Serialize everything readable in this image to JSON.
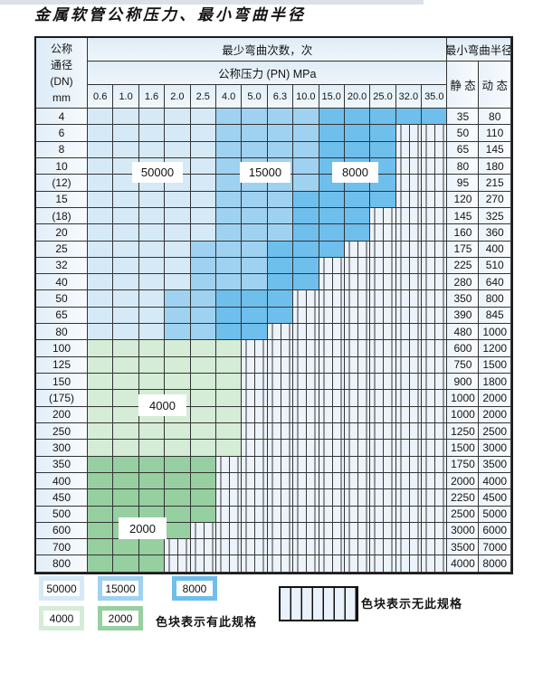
{
  "title": "金属软管公称压力、最小弯曲半径",
  "header": {
    "dn_lines": [
      "公称",
      "通径",
      "(DN)",
      "mm"
    ],
    "cycles_label": "最少弯曲次数，次",
    "pressure_label": "公称压力 (PN) MPa",
    "pressure_values": [
      "0.6",
      "1.0",
      "1.6",
      "2.0",
      "2.5",
      "4.0",
      "5.0",
      "6.3",
      "10.0",
      "15.0",
      "20.0",
      "25.0",
      "32.0",
      "35.0"
    ],
    "radius_label": "最小弯曲半径",
    "static_label": "静 态",
    "dynamic_label": "动 态"
  },
  "colors": {
    "c50000": "#d6e9f7",
    "c15000": "#9fd2f1",
    "c8000": "#6fbfec",
    "c4000": "#d5ecd7",
    "c2000": "#96cfa0",
    "hatch_bg": "#ecf3fb",
    "grid_line": "#333333"
  },
  "rows": [
    {
      "dn": "4",
      "static": "35",
      "dynamic": "80",
      "last_col": 13,
      "band": [
        5,
        9
      ]
    },
    {
      "dn": "6",
      "static": "50",
      "dynamic": "110",
      "last_col": 11,
      "band": [
        5,
        9
      ]
    },
    {
      "dn": "8",
      "static": "65",
      "dynamic": "145",
      "last_col": 11,
      "band": [
        5,
        9
      ]
    },
    {
      "dn": "10",
      "static": "80",
      "dynamic": "180",
      "last_col": 11,
      "band": [
        5,
        9
      ]
    },
    {
      "dn": "(12)",
      "static": "95",
      "dynamic": "215",
      "last_col": 11,
      "band": [
        5,
        9
      ]
    },
    {
      "dn": "15",
      "static": "120",
      "dynamic": "270",
      "last_col": 11,
      "band": [
        5,
        8
      ]
    },
    {
      "dn": "(18)",
      "static": "145",
      "dynamic": "325",
      "last_col": 10,
      "band": [
        5,
        8
      ]
    },
    {
      "dn": "20",
      "static": "160",
      "dynamic": "360",
      "last_col": 10,
      "band": [
        5,
        8
      ]
    },
    {
      "dn": "25",
      "static": "175",
      "dynamic": "400",
      "last_col": 9,
      "band": [
        4,
        7
      ]
    },
    {
      "dn": "32",
      "static": "225",
      "dynamic": "510",
      "last_col": 8,
      "band": [
        4,
        7
      ]
    },
    {
      "dn": "40",
      "static": "280",
      "dynamic": "640",
      "last_col": 8,
      "band": [
        4,
        7
      ]
    },
    {
      "dn": "50",
      "static": "350",
      "dynamic": "800",
      "last_col": 7,
      "band": [
        3,
        5
      ]
    },
    {
      "dn": "65",
      "static": "390",
      "dynamic": "845",
      "last_col": 7,
      "band": [
        3,
        5
      ]
    },
    {
      "dn": "80",
      "static": "480",
      "dynamic": "1000",
      "last_col": 6,
      "band": [
        3,
        5
      ]
    },
    {
      "dn": "100",
      "static": "600",
      "dynamic": "1200",
      "last_col": 5,
      "tone": "c4000"
    },
    {
      "dn": "125",
      "static": "750",
      "dynamic": "1500",
      "last_col": 5,
      "tone": "c4000"
    },
    {
      "dn": "150",
      "static": "900",
      "dynamic": "1800",
      "last_col": 5,
      "tone": "c4000"
    },
    {
      "dn": "(175)",
      "static": "1000",
      "dynamic": "2000",
      "last_col": 5,
      "tone": "c4000"
    },
    {
      "dn": "200",
      "static": "1000",
      "dynamic": "2000",
      "last_col": 5,
      "tone": "c4000"
    },
    {
      "dn": "250",
      "static": "1250",
      "dynamic": "2500",
      "last_col": 5,
      "tone": "c4000"
    },
    {
      "dn": "300",
      "static": "1500",
      "dynamic": "3000",
      "last_col": 5,
      "tone": "c4000"
    },
    {
      "dn": "350",
      "static": "1750",
      "dynamic": "3500",
      "last_col": 4,
      "tone": "c2000"
    },
    {
      "dn": "400",
      "static": "2000",
      "dynamic": "4000",
      "last_col": 4,
      "tone": "c2000"
    },
    {
      "dn": "450",
      "static": "2250",
      "dynamic": "4500",
      "last_col": 4,
      "tone": "c2000"
    },
    {
      "dn": "500",
      "static": "2500",
      "dynamic": "5000",
      "last_col": 4,
      "tone": "c2000"
    },
    {
      "dn": "600",
      "static": "3000",
      "dynamic": "6000",
      "last_col": 3,
      "tone": "c2000"
    },
    {
      "dn": "700",
      "static": "3500",
      "dynamic": "7000",
      "last_col": 2,
      "tone": "c2000"
    },
    {
      "dn": "800",
      "static": "4000",
      "dynamic": "8000",
      "last_col": 2,
      "tone": "c2000"
    }
  ],
  "overlay_labels": [
    "50000",
    "15000",
    "8000",
    "4000",
    "2000"
  ],
  "legend": {
    "items": [
      {
        "label": "50000",
        "color_key": "c50000"
      },
      {
        "label": "15000",
        "color_key": "c15000"
      },
      {
        "label": "8000",
        "color_key": "c8000"
      },
      {
        "label": "4000",
        "color_key": "c4000"
      },
      {
        "label": "2000",
        "color_key": "c2000"
      }
    ],
    "has_spec_text": "色块表示有此规格",
    "no_spec_text": "色块表示无此规格"
  }
}
